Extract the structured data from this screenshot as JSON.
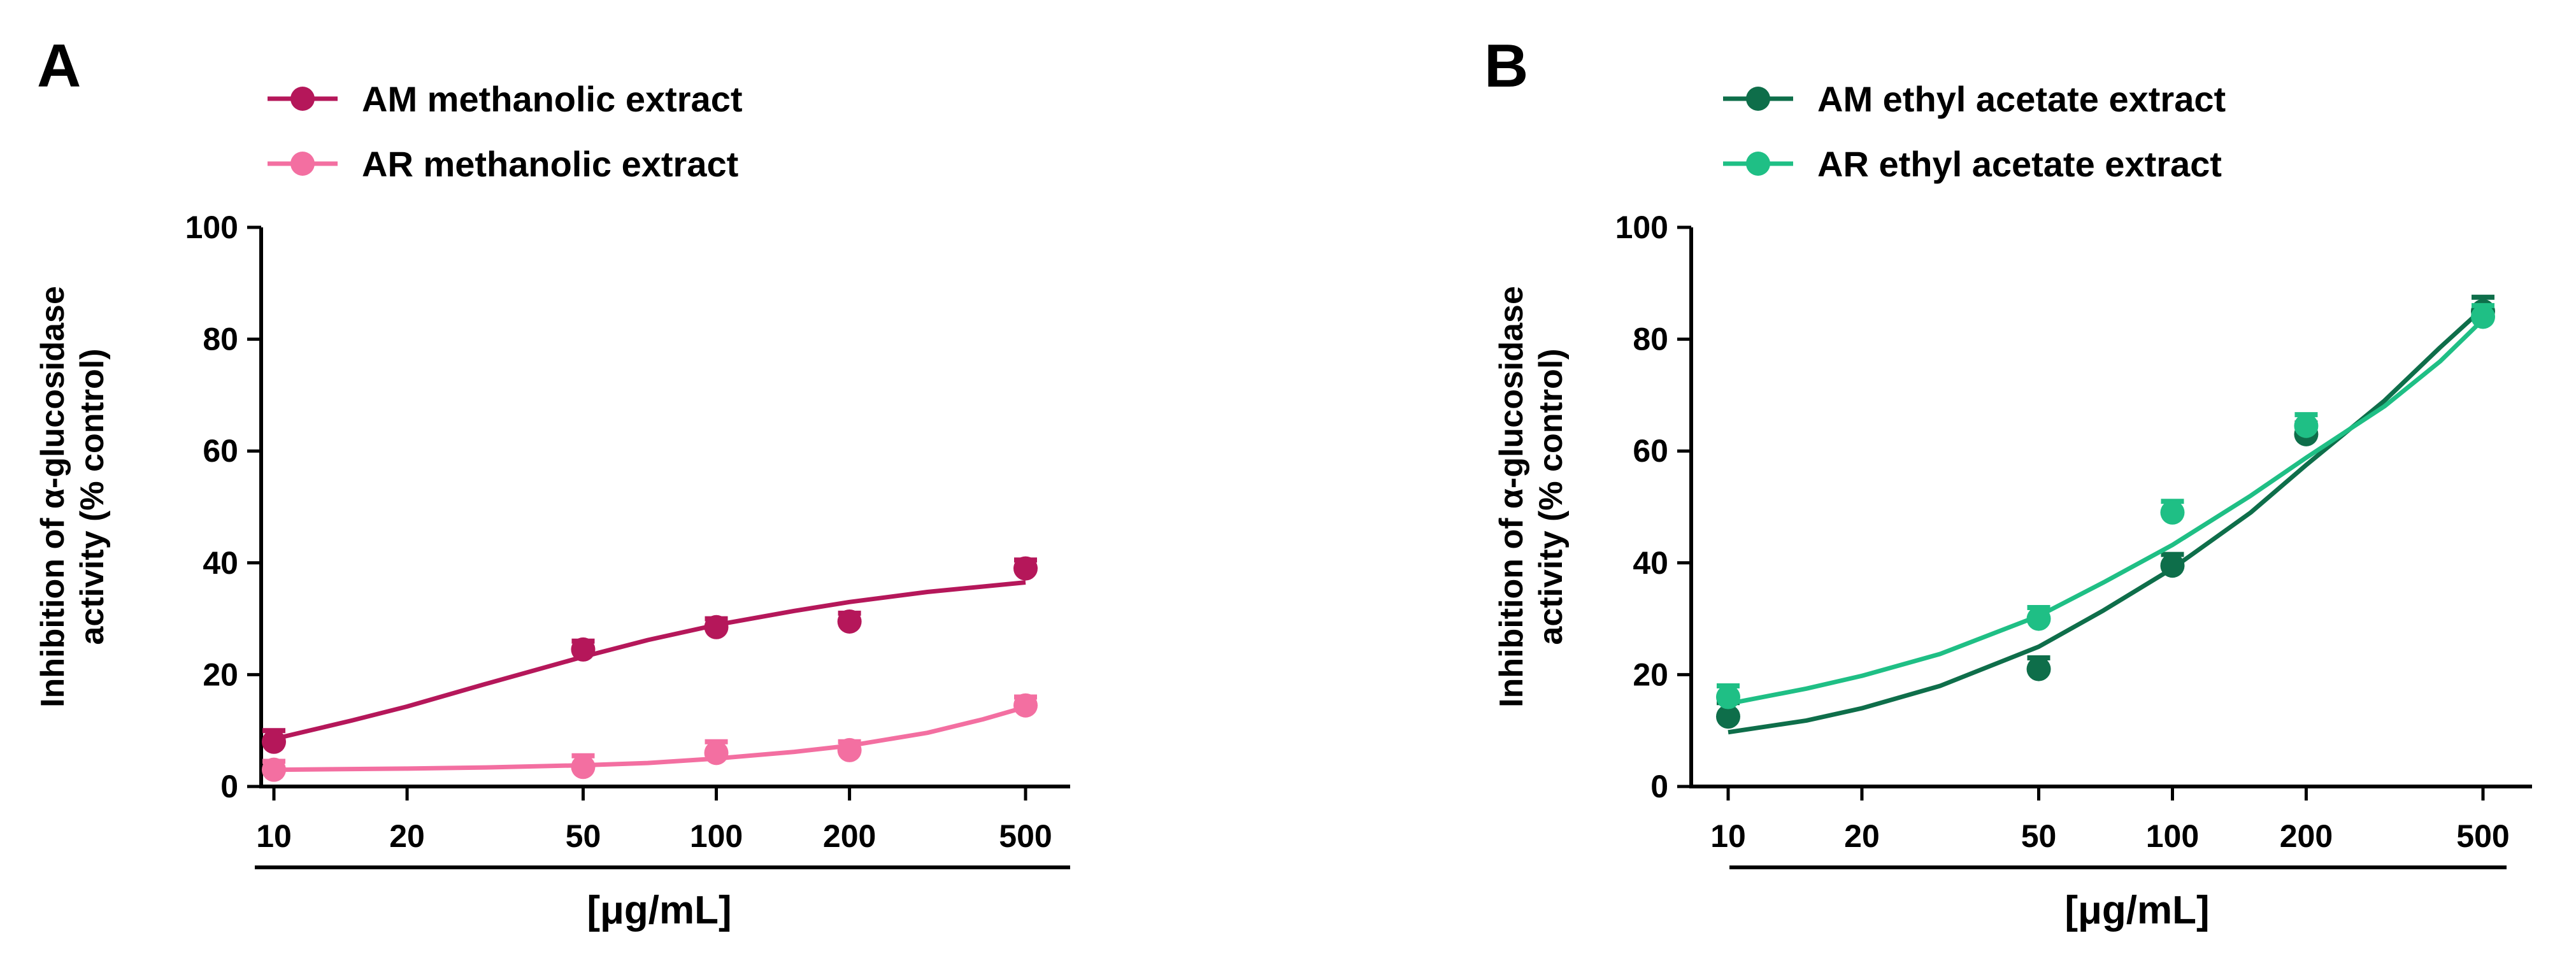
{
  "chart_data": [
    {
      "type": "scatter",
      "panel_label": "A",
      "title": "",
      "xlabel": "[μg/mL]",
      "ylabel_lines": [
        "Inhibition of α-glucosidase",
        "activity (% control)"
      ],
      "xscale": "log",
      "x_ticks": [
        10,
        20,
        50,
        100,
        200,
        500
      ],
      "x_tick_labels": [
        "10",
        "20",
        "50",
        "100",
        "200",
        "500"
      ],
      "xlim": [
        8.5,
        600
      ],
      "ylim": [
        0,
        100
      ],
      "y_ticks": [
        0,
        20,
        40,
        60,
        80,
        100
      ],
      "y_tick_labels": [
        "0",
        "20",
        "40",
        "60",
        "80",
        "100"
      ],
      "legend_position": "top",
      "series": [
        {
          "name": "AM methanolic extract",
          "color": "#b5175a",
          "x": [
            10,
            50,
            100,
            200,
            500
          ],
          "values": [
            8,
            24.5,
            28.5,
            29.5,
            39
          ],
          "error": [
            2,
            1.5,
            1.5,
            1.5,
            1.5
          ],
          "fit_x": [
            10,
            15,
            20,
            30,
            50,
            70,
            100,
            150,
            200,
            300,
            500
          ],
          "fit_y": [
            8.5,
            11.8,
            14.3,
            18.3,
            23.2,
            26.2,
            28.9,
            31.4,
            33,
            34.8,
            36.5
          ]
        },
        {
          "name": "AR methanolic extract",
          "color": "#f36fa1",
          "x": [
            10,
            50,
            100,
            200,
            500
          ],
          "values": [
            3,
            3.5,
            6,
            6.5,
            14.5
          ],
          "error": [
            1.5,
            2,
            2,
            1.5,
            1.5
          ],
          "fit_x": [
            10,
            20,
            30,
            50,
            70,
            100,
            150,
            200,
            300,
            400,
            500
          ],
          "fit_y": [
            3,
            3.2,
            3.4,
            3.8,
            4.2,
            5,
            6.2,
            7.3,
            9.6,
            12,
            14.2
          ]
        }
      ]
    },
    {
      "type": "scatter",
      "panel_label": "B",
      "title": "",
      "xlabel": "[μg/mL]",
      "ylabel_lines": [
        "Inhibition of α-glucosidase",
        "activity (% control)"
      ],
      "xscale": "log",
      "x_ticks": [
        10,
        20,
        50,
        100,
        200,
        500
      ],
      "x_tick_labels": [
        "10",
        "20",
        "50",
        "100",
        "200",
        "500"
      ],
      "xlim": [
        8.5,
        600
      ],
      "ylim": [
        0,
        100
      ],
      "y_ticks": [
        0,
        20,
        40,
        60,
        80,
        100
      ],
      "y_tick_labels": [
        "0",
        "20",
        "40",
        "60",
        "80",
        "100"
      ],
      "legend_position": "top",
      "series": [
        {
          "name": "AM ethyl acetate extract",
          "color": "#0e6e4a",
          "x": [
            10,
            50,
            100,
            200,
            500
          ],
          "values": [
            12.5,
            21,
            39.5,
            63,
            85
          ],
          "error": [
            2.5,
            2,
            2,
            2,
            2.5
          ],
          "fit_x": [
            10,
            15,
            20,
            30,
            50,
            70,
            100,
            150,
            200,
            300,
            400,
            500
          ],
          "fit_y": [
            9.7,
            11.8,
            14,
            18,
            25,
            31.5,
            39,
            49,
            57.5,
            69,
            78.5,
            85.5
          ]
        },
        {
          "name": "AR ethyl acetate extract",
          "color": "#1fbf85",
          "x": [
            10,
            50,
            100,
            200,
            500
          ],
          "values": [
            16,
            30,
            49,
            64.5,
            84
          ],
          "error": [
            2,
            2,
            2,
            2,
            2
          ],
          "fit_x": [
            10,
            15,
            20,
            30,
            50,
            70,
            100,
            150,
            200,
            300,
            400,
            500
          ],
          "fit_y": [
            14.8,
            17.5,
            19.8,
            23.7,
            30.5,
            36.5,
            43.2,
            52,
            58.8,
            68,
            76,
            83.5
          ]
        }
      ]
    }
  ]
}
